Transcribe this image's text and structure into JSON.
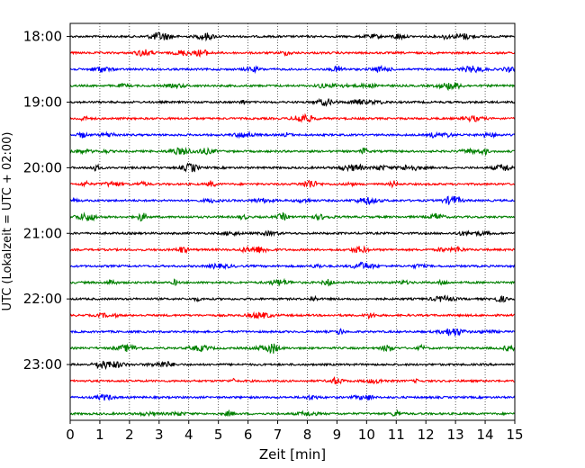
{
  "chart_data": {
    "type": "line",
    "title": "",
    "xlabel": "Zeit  [min]",
    "ylabel": "UTC (Lokalzeit = UTC + 02:00)",
    "xlim": [
      0,
      15
    ],
    "x_ticks": [
      0,
      1,
      2,
      3,
      4,
      5,
      6,
      7,
      8,
      9,
      10,
      11,
      12,
      13,
      14,
      15
    ],
    "ylim_rows": [
      -0.8,
      23.4
    ],
    "y_ticks": [
      {
        "row": 0,
        "label": "18:00"
      },
      {
        "row": 4,
        "label": "19:00"
      },
      {
        "row": 8,
        "label": "20:00"
      },
      {
        "row": 12,
        "label": "21:00"
      },
      {
        "row": 16,
        "label": "22:00"
      },
      {
        "row": 20,
        "label": "23:00"
      }
    ],
    "grid": {
      "vertical": true,
      "style": "dotted"
    },
    "legend": "none",
    "trace_colors": [
      "#000000",
      "#ff0000",
      "#0000ff",
      "#008000"
    ],
    "traces": [
      {
        "start": "18:00",
        "duration_min": 15
      },
      {
        "start": "18:15",
        "duration_min": 15
      },
      {
        "start": "18:30",
        "duration_min": 15
      },
      {
        "start": "18:45",
        "duration_min": 15
      },
      {
        "start": "19:00",
        "duration_min": 15
      },
      {
        "start": "19:15",
        "duration_min": 15
      },
      {
        "start": "19:30",
        "duration_min": 15
      },
      {
        "start": "19:45",
        "duration_min": 15
      },
      {
        "start": "20:00",
        "duration_min": 15
      },
      {
        "start": "20:15",
        "duration_min": 15
      },
      {
        "start": "20:30",
        "duration_min": 15
      },
      {
        "start": "20:45",
        "duration_min": 15
      },
      {
        "start": "21:00",
        "duration_min": 15
      },
      {
        "start": "21:15",
        "duration_min": 15
      },
      {
        "start": "21:30",
        "duration_min": 15
      },
      {
        "start": "21:45",
        "duration_min": 15
      },
      {
        "start": "22:00",
        "duration_min": 15
      },
      {
        "start": "22:15",
        "duration_min": 15
      },
      {
        "start": "22:30",
        "duration_min": 15
      },
      {
        "start": "22:45",
        "duration_min": 15
      },
      {
        "start": "23:00",
        "duration_min": 15
      },
      {
        "start": "23:15",
        "duration_min": 15
      },
      {
        "start": "23:30",
        "duration_min": 15
      },
      {
        "start": "23:45",
        "duration_min": 15
      }
    ]
  }
}
